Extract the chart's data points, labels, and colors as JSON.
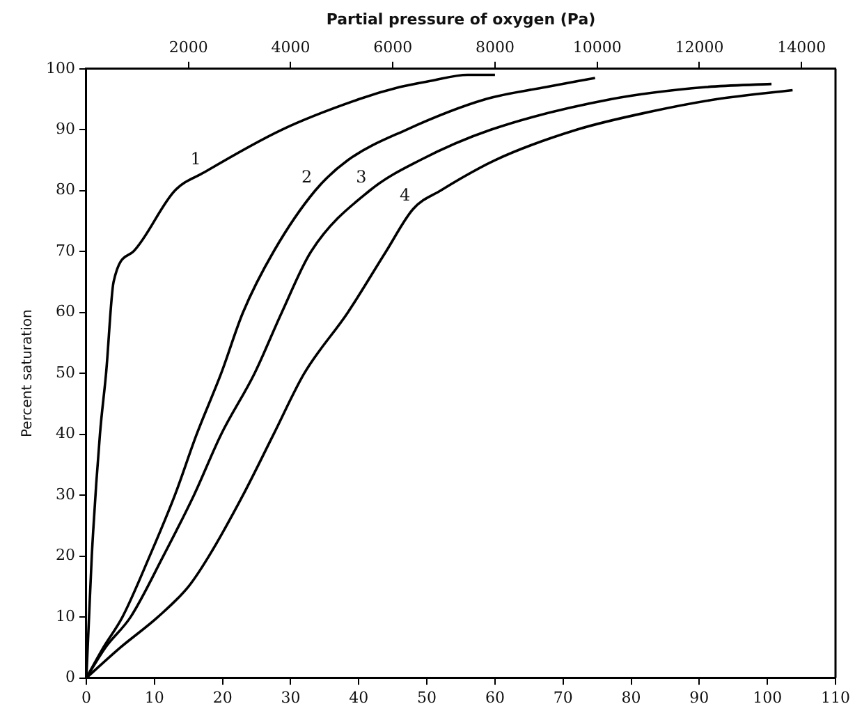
{
  "chart_data": {
    "type": "line",
    "x2label": "Partial pressure of oxygen (Pa)",
    "ylabel": "Percent saturation",
    "xlim": [
      0,
      110
    ],
    "xticks": [
      0,
      10,
      20,
      30,
      40,
      50,
      60,
      70,
      80,
      90,
      100,
      110
    ],
    "x2lim": [
      0,
      14665
    ],
    "x2ticks": [
      2000,
      4000,
      6000,
      8000,
      10000,
      12000,
      14000
    ],
    "ylim": [
      0,
      100
    ],
    "yticks": [
      0,
      10,
      20,
      30,
      40,
      50,
      60,
      70,
      80,
      90,
      100
    ],
    "grid": false,
    "legend": false,
    "marker": "none",
    "line_style": "solid",
    "series": [
      {
        "color": "#000000",
        "x": [
          0,
          0.4,
          0.8,
          2,
          2.9,
          4,
          6.9,
          13,
          17.3,
          28.7,
          40,
          46,
          50.5,
          56,
          60
        ],
        "values": [
          0,
          10,
          20,
          40,
          50,
          65,
          70,
          80,
          83,
          90,
          95,
          97,
          98,
          99,
          99
        ]
      },
      {
        "color": "#000000",
        "x": [
          0,
          2.5,
          5.3,
          9.3,
          13,
          16.2,
          19.8,
          23,
          27.5,
          33.6,
          38.4,
          47,
          58.6,
          67.5,
          74.7
        ],
        "values": [
          0,
          5,
          10,
          20,
          30,
          40,
          50,
          60,
          70,
          80,
          85,
          90,
          95,
          97,
          98.5
        ]
      },
      {
        "color": "#000000",
        "x": [
          0,
          2.8,
          6.5,
          11.3,
          15.8,
          19.8,
          24.7,
          28.7,
          33,
          41.6,
          49,
          59.4,
          77,
          91,
          100.6
        ],
        "values": [
          0,
          5,
          10,
          20,
          30,
          40,
          50,
          60,
          70,
          80,
          85,
          90,
          95,
          97,
          97.5
        ]
      },
      {
        "color": "#000000",
        "x": [
          0,
          5,
          10.5,
          15,
          18,
          23,
          27.5,
          32,
          38.4,
          44,
          48,
          52,
          60,
          72,
          83,
          92.5,
          103.7
        ],
        "values": [
          0,
          5,
          10,
          15,
          20,
          30,
          40,
          50,
          60,
          70,
          77,
          80,
          85,
          90,
          93,
          95,
          96.5
        ]
      }
    ],
    "annotations": [
      {
        "text": "1",
        "x": 17.3,
        "y": 83
      },
      {
        "text": "2",
        "x": 33.6,
        "y": 80
      },
      {
        "text": "3",
        "x": 41.6,
        "y": 80
      },
      {
        "text": "4",
        "x": 48,
        "y": 77
      }
    ]
  }
}
